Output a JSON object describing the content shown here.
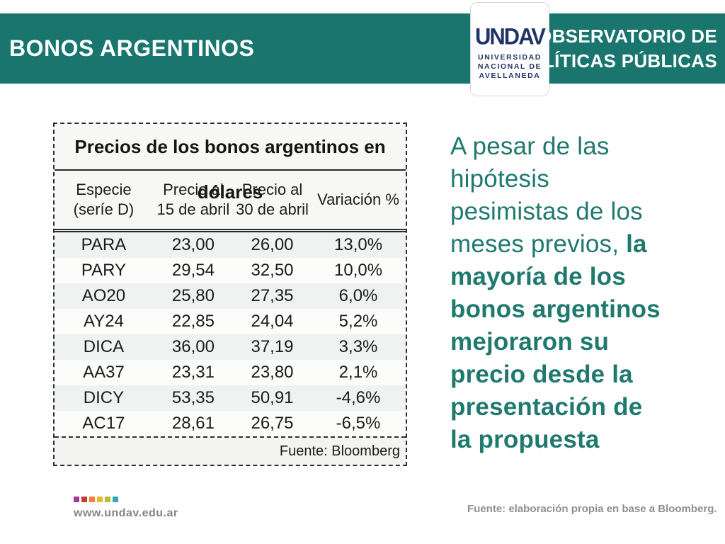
{
  "colors": {
    "teal_bar": "#19756e",
    "accent_text": "#20796f",
    "positive": "#2aa55f",
    "negative": "#c0252b",
    "navy": "#223467"
  },
  "header": {
    "title": "BONOS ARGENTINOS",
    "org_line1": "OBSERVATORIO DE",
    "org_line2": "POLÍTICAS PÚBLICAS"
  },
  "logo": {
    "wordmark": "UNDAV",
    "line1": "UNIVERSIDAD",
    "line2": "NACIONAL DE",
    "line3": "AVELLANEDA"
  },
  "table": {
    "title": "Precios de los bonos argentinos en dólares",
    "headers": [
      "Especie\n(seríe D)",
      "Precio al\n15 de abril",
      "Precio al\n30 de abril",
      "Variación %"
    ],
    "rows": [
      {
        "especie": "PARA",
        "p15": "23,00",
        "p30": "26,00",
        "var": "13,0%"
      },
      {
        "especie": "PARY",
        "p15": "29,54",
        "p30": "32,50",
        "var": "10,0%"
      },
      {
        "especie": "AO20",
        "p15": "25,80",
        "p30": "27,35",
        "var": "6,0%"
      },
      {
        "especie": "AY24",
        "p15": "22,85",
        "p30": "24,04",
        "var": "5,2%"
      },
      {
        "especie": "DICA",
        "p15": "36,00",
        "p30": "37,19",
        "var": "3,3%"
      },
      {
        "especie": "AA37",
        "p15": "23,31",
        "p30": "23,80",
        "var": "2,1%"
      },
      {
        "especie": "DICY",
        "p15": "53,35",
        "p30": "50,91",
        "var": "-4,6%"
      },
      {
        "especie": "AC17",
        "p15": "28,61",
        "p30": "26,75",
        "var": "-6,5%"
      }
    ],
    "source": "Fuente: Bloomberg"
  },
  "sidetext": {
    "lines": [
      {
        "segments": [
          {
            "t": "A pesar de las",
            "b": false
          }
        ]
      },
      {
        "segments": [
          {
            "t": "hipótesis",
            "b": false
          }
        ]
      },
      {
        "segments": [
          {
            "t": "pesimistas de los",
            "b": false
          }
        ]
      },
      {
        "segments": [
          {
            "t": "meses previos, ",
            "b": false
          },
          {
            "t": "la",
            "b": true
          }
        ]
      },
      {
        "segments": [
          {
            "t": "mayoría de los",
            "b": true
          }
        ]
      },
      {
        "segments": [
          {
            "t": "bonos argentinos",
            "b": true
          }
        ]
      },
      {
        "segments": [
          {
            "t": "mejoraron su",
            "b": true
          }
        ]
      },
      {
        "segments": [
          {
            "t": "precio desde la",
            "b": true
          }
        ]
      },
      {
        "segments": [
          {
            "t": "presentación de",
            "b": true
          }
        ]
      },
      {
        "segments": [
          {
            "t": "la propuesta",
            "b": true
          }
        ]
      }
    ]
  },
  "footer": {
    "dots": [
      "#a13a94",
      "#c33b33",
      "#e8862b",
      "#eab62e",
      "#b7bc39",
      "#39a3b5"
    ],
    "website": "www.undav.edu.ar",
    "source": "Fuente: elaboración propia en base a Bloomberg."
  }
}
